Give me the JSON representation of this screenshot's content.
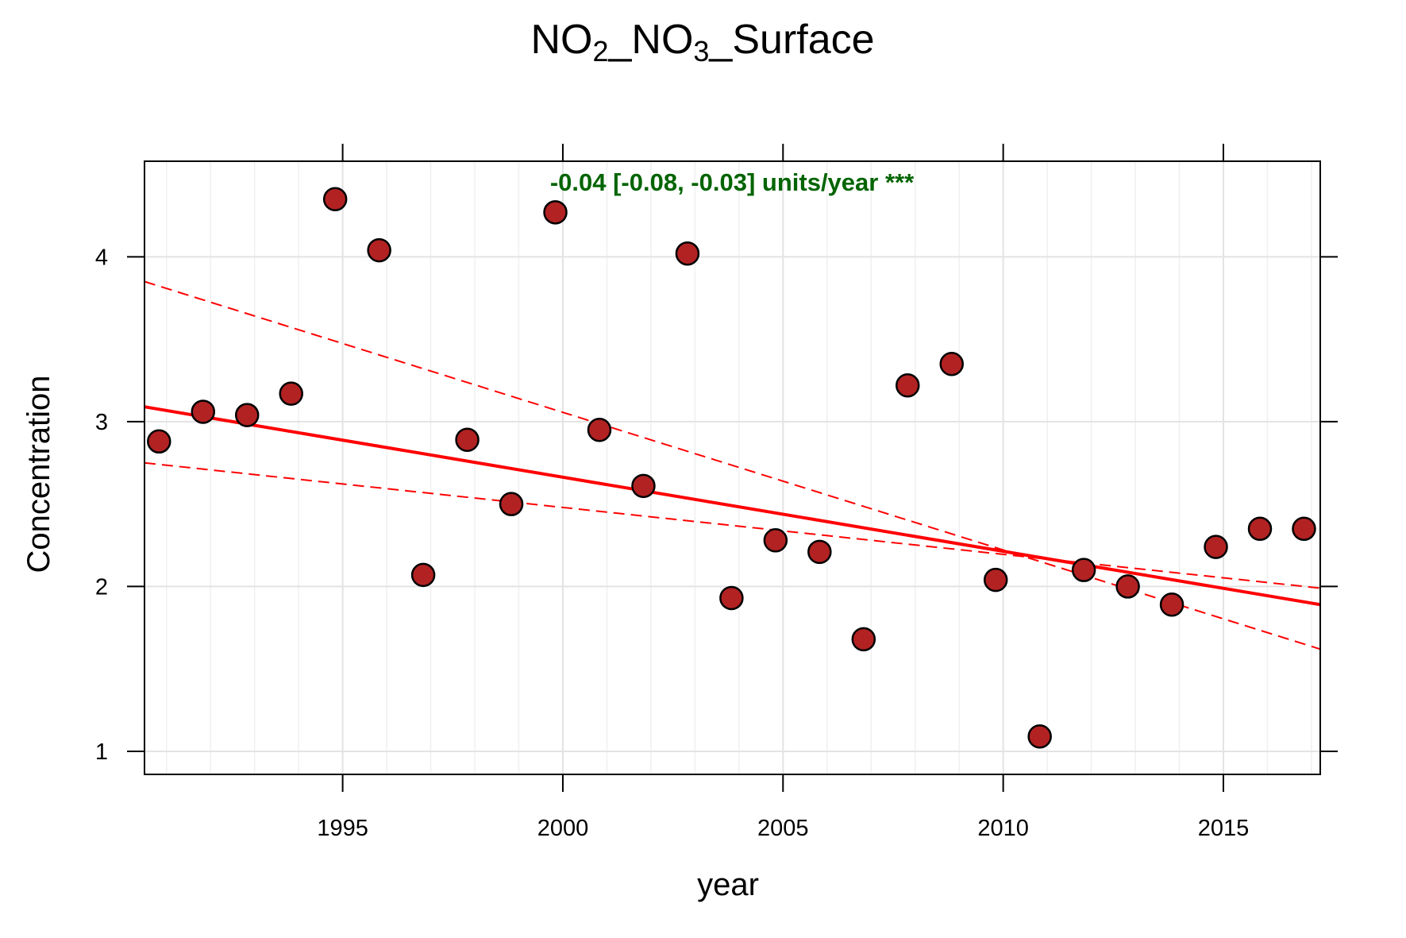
{
  "chart_data": {
    "type": "scatter",
    "title": {
      "prefix": "NO",
      "sub1": "2",
      "mid": "_NO",
      "sub2": "3",
      "suffix": "_Surface"
    },
    "xlabel": "year",
    "ylabel": "Concentration",
    "xlim": [
      1990.5,
      2017.2
    ],
    "ylim": [
      0.86,
      4.58
    ],
    "x_ticks": [
      1995,
      2000,
      2005,
      2010,
      2015
    ],
    "x_tick_labels": [
      "1995",
      "2000",
      "2005",
      "2010",
      "2015"
    ],
    "y_ticks": [
      1,
      2,
      3,
      4
    ],
    "y_tick_labels": [
      "1",
      "2",
      "3",
      "4"
    ],
    "grid": true,
    "annotation": "-0.04 [-0.08, -0.03] units/year ***",
    "colors": {
      "points": "#b22222",
      "trend": "#ff0000",
      "annotation": "#006400",
      "grid": "#e8e8e8"
    },
    "points": [
      {
        "x": 1990.83,
        "y": 2.88
      },
      {
        "x": 1991.83,
        "y": 3.06
      },
      {
        "x": 1992.83,
        "y": 3.04
      },
      {
        "x": 1993.83,
        "y": 3.17
      },
      {
        "x": 1994.83,
        "y": 4.35
      },
      {
        "x": 1995.83,
        "y": 4.04
      },
      {
        "x": 1996.83,
        "y": 2.07
      },
      {
        "x": 1997.83,
        "y": 2.89
      },
      {
        "x": 1998.83,
        "y": 2.5
      },
      {
        "x": 1999.83,
        "y": 4.27
      },
      {
        "x": 2000.83,
        "y": 2.95
      },
      {
        "x": 2001.83,
        "y": 2.61
      },
      {
        "x": 2002.83,
        "y": 4.02
      },
      {
        "x": 2003.83,
        "y": 1.93
      },
      {
        "x": 2004.83,
        "y": 2.28
      },
      {
        "x": 2005.83,
        "y": 2.21
      },
      {
        "x": 2006.83,
        "y": 1.68
      },
      {
        "x": 2007.83,
        "y": 3.22
      },
      {
        "x": 2008.83,
        "y": 3.35
      },
      {
        "x": 2009.83,
        "y": 2.04
      },
      {
        "x": 2010.83,
        "y": 1.09
      },
      {
        "x": 2011.83,
        "y": 2.1
      },
      {
        "x": 2012.83,
        "y": 2.0
      },
      {
        "x": 2013.83,
        "y": 1.89
      },
      {
        "x": 2014.83,
        "y": 2.24
      },
      {
        "x": 2015.83,
        "y": 2.35
      },
      {
        "x": 2016.83,
        "y": 2.35
      }
    ],
    "trend_line": [
      {
        "x": 1990.5,
        "y": 3.09
      },
      {
        "x": 2017.2,
        "y": 1.89
      }
    ],
    "ci_lines": [
      [
        {
          "x": 1990.5,
          "y": 3.85
        },
        {
          "x": 2017.2,
          "y": 1.62
        }
      ],
      [
        {
          "x": 1990.5,
          "y": 2.75
        },
        {
          "x": 2017.2,
          "y": 1.99
        }
      ]
    ]
  }
}
